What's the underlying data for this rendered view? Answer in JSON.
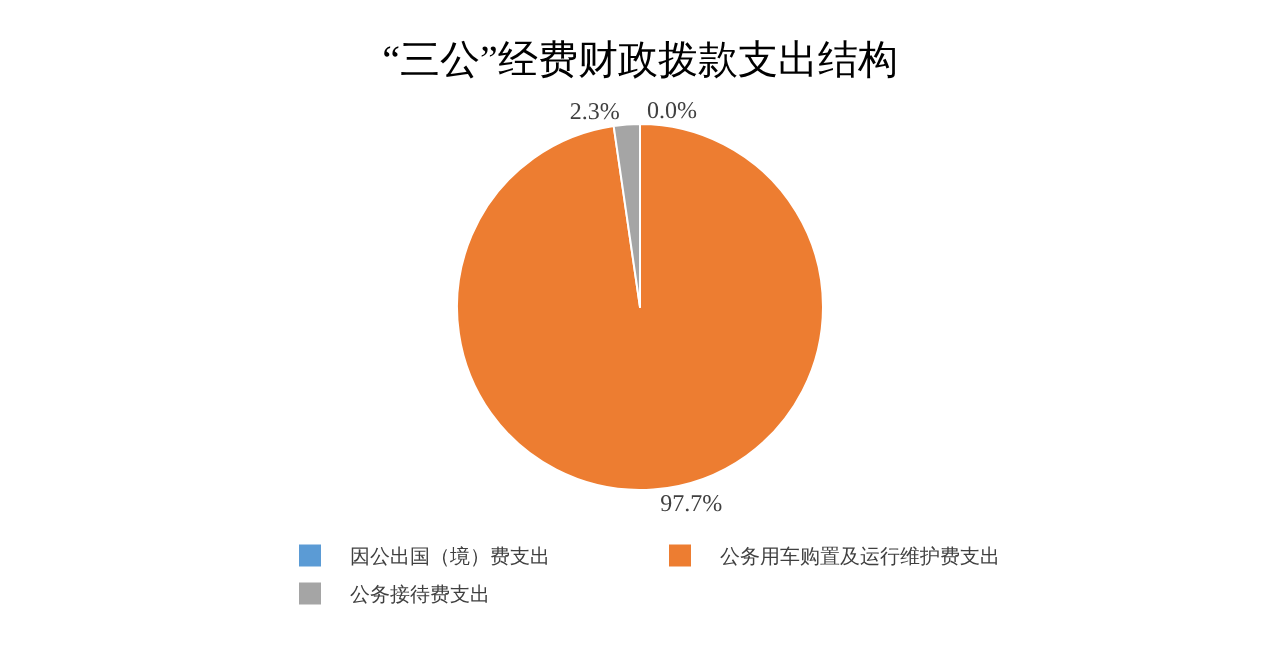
{
  "chart_data": {
    "type": "pie",
    "title": "“三公”经费财政拨款支出结构",
    "categories": [
      "因公出国（境）费支出",
      "公务用车购置及运行维护费支出",
      "公务接待费支出"
    ],
    "values": [
      0.0,
      97.7,
      2.3
    ],
    "value_labels": [
      "0.0%",
      "97.7%",
      "2.3%"
    ],
    "colors": [
      "#5b9bd5",
      "#ed7d31",
      "#a5a5a5"
    ],
    "legend": "bottom"
  }
}
